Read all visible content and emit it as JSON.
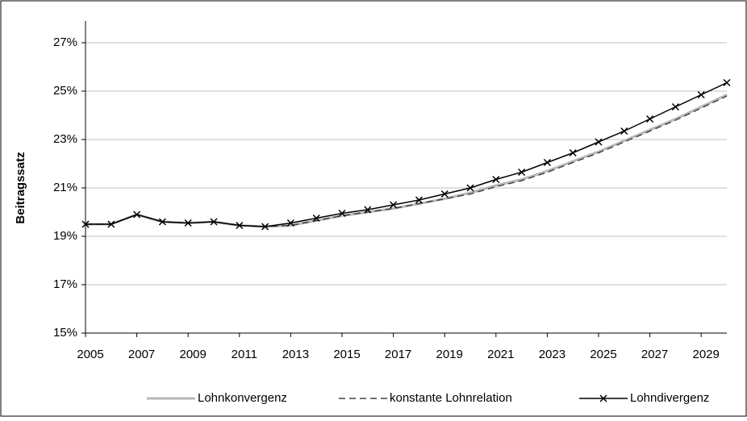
{
  "chart_data": {
    "type": "line",
    "y_label": "Beitragssatz",
    "x": [
      2005,
      2006,
      2007,
      2008,
      2009,
      2010,
      2011,
      2012,
      2013,
      2014,
      2015,
      2016,
      2017,
      2018,
      2019,
      2020,
      2021,
      2022,
      2023,
      2024,
      2025,
      2026,
      2027,
      2028,
      2029,
      2030
    ],
    "xlim": [
      2005,
      2030
    ],
    "xticks": [
      2005,
      2007,
      2009,
      2011,
      2013,
      2015,
      2017,
      2019,
      2021,
      2023,
      2025,
      2027,
      2029
    ],
    "ylim": [
      15,
      27.9
    ],
    "yticks": [
      {
        "value": 15,
        "label": "15%"
      },
      {
        "value": 17,
        "label": "17%"
      },
      {
        "value": 19,
        "label": "19%"
      },
      {
        "value": 21,
        "label": "21%"
      },
      {
        "value": 23,
        "label": "23%"
      },
      {
        "value": 25,
        "label": "25%"
      },
      {
        "value": 27,
        "label": "27%"
      }
    ],
    "grid": true,
    "legend": "bottom",
    "series": [
      {
        "name": "Lohnkonvergenz",
        "color": "#b8b8b8",
        "dash": "solid",
        "marker": "none",
        "values": [
          19.5,
          19.5,
          19.9,
          19.6,
          19.55,
          19.6,
          19.45,
          19.4,
          19.45,
          19.65,
          19.85,
          20.0,
          20.15,
          20.35,
          20.55,
          20.8,
          21.1,
          21.35,
          21.7,
          22.1,
          22.5,
          22.95,
          23.4,
          23.85,
          24.35,
          24.85
        ]
      },
      {
        "name": "konstante Lohnrelation",
        "color": "#444444",
        "dash": "dashed",
        "marker": "none",
        "values": [
          19.5,
          19.5,
          19.9,
          19.6,
          19.55,
          19.6,
          19.45,
          19.4,
          19.45,
          19.65,
          19.85,
          20.0,
          20.15,
          20.35,
          20.55,
          20.75,
          21.05,
          21.3,
          21.65,
          22.05,
          22.45,
          22.9,
          23.35,
          23.8,
          24.3,
          24.8
        ]
      },
      {
        "name": "Lohndivergenz",
        "color": "#000000",
        "dash": "solid",
        "marker": "x",
        "values": [
          19.5,
          19.5,
          19.9,
          19.6,
          19.55,
          19.6,
          19.45,
          19.4,
          19.55,
          19.75,
          19.95,
          20.1,
          20.3,
          20.5,
          20.75,
          21.0,
          21.35,
          21.65,
          22.05,
          22.45,
          22.9,
          23.35,
          23.85,
          24.35,
          24.85,
          25.35
        ]
      }
    ]
  }
}
